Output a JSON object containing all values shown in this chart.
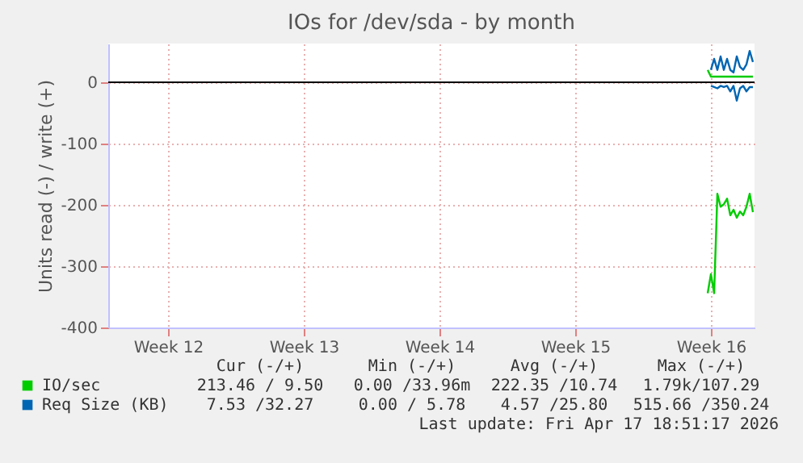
{
  "chart_data": {
    "type": "line",
    "title": "IOs for /dev/sda - by month",
    "ylabel": "Units read (-) / write (+)",
    "categories": [
      null,
      null,
      null,
      null,
      null,
      null,
      null,
      null,
      null,
      null,
      null,
      null,
      null,
      null,
      null,
      null,
      null,
      null,
      "Week 12",
      null,
      null,
      null,
      null,
      null,
      null,
      null,
      null,
      null,
      null,
      null,
      null,
      null,
      null,
      null,
      null,
      null,
      null,
      null,
      null,
      null,
      null,
      null,
      null,
      null,
      null,
      null,
      null,
      null,
      null,
      null,
      null,
      null,
      null,
      null,
      null,
      null,
      null,
      null,
      null,
      null,
      "Week 13",
      null,
      null,
      null,
      null,
      null,
      null,
      null,
      null,
      null,
      null,
      null,
      null,
      null,
      null,
      null,
      null,
      null,
      null,
      null,
      null,
      null,
      null,
      null,
      null,
      null,
      null,
      null,
      null,
      null,
      null,
      null,
      null,
      null,
      null,
      null,
      null,
      null,
      null,
      null,
      null,
      null,
      "Week 14",
      null,
      null,
      null,
      null,
      null,
      null,
      null,
      null,
      null,
      null,
      null,
      null,
      null,
      null,
      null,
      null,
      null,
      null,
      null,
      null,
      null,
      null,
      null,
      null,
      null,
      null,
      null,
      null,
      null,
      null,
      null,
      null,
      null,
      null,
      null,
      null,
      null,
      null,
      null,
      null,
      null,
      "Week 15",
      null,
      null,
      null,
      null,
      null,
      null,
      null,
      null,
      null,
      null,
      null,
      null,
      null,
      null,
      null,
      null,
      null,
      null,
      null,
      null,
      null,
      null,
      null,
      null,
      null,
      null,
      null,
      null,
      null,
      null,
      null,
      null,
      null,
      null,
      null,
      null,
      null,
      null,
      null,
      null,
      null,
      "Week 16",
      null,
      null,
      null,
      null,
      null,
      null,
      null,
      null,
      null,
      null,
      null,
      null,
      null
    ],
    "ylim": [
      -400,
      63
    ],
    "yticks": [
      -400,
      -300,
      -200,
      -100,
      0
    ],
    "grid": true,
    "legend": "bottom",
    "line_style": "solid",
    "ref_lines": [
      {
        "axis": "y",
        "value": 0,
        "color": "#000000"
      }
    ],
    "series": [
      {
        "name": "IO/sec",
        "color": "#00cc00",
        "values": [
          null,
          null,
          null,
          null,
          null,
          null,
          null,
          null,
          null,
          null,
          null,
          null,
          null,
          null,
          null,
          null,
          null,
          null,
          null,
          null,
          null,
          null,
          null,
          null,
          null,
          null,
          null,
          null,
          null,
          null,
          null,
          null,
          null,
          null,
          null,
          null,
          null,
          null,
          null,
          null,
          null,
          null,
          null,
          null,
          null,
          null,
          null,
          null,
          null,
          null,
          null,
          null,
          null,
          null,
          null,
          null,
          null,
          null,
          null,
          null,
          null,
          null,
          null,
          null,
          null,
          null,
          null,
          null,
          null,
          null,
          null,
          null,
          null,
          null,
          null,
          null,
          null,
          null,
          null,
          null,
          null,
          null,
          null,
          null,
          null,
          null,
          null,
          null,
          null,
          null,
          null,
          null,
          null,
          null,
          null,
          null,
          null,
          null,
          null,
          null,
          null,
          null,
          null,
          null,
          null,
          null,
          null,
          null,
          null,
          null,
          null,
          null,
          null,
          null,
          null,
          null,
          null,
          null,
          null,
          null,
          null,
          null,
          null,
          null,
          null,
          null,
          null,
          null,
          null,
          null,
          null,
          null,
          null,
          null,
          null,
          null,
          null,
          null,
          null,
          null,
          null,
          null,
          null,
          null,
          null,
          null,
          null,
          null,
          null,
          null,
          null,
          null,
          null,
          null,
          null,
          null,
          null,
          null,
          null,
          null,
          null,
          null,
          null,
          null,
          null,
          null,
          null,
          null,
          null,
          null,
          null,
          null,
          null,
          null,
          null,
          null,
          null,
          null,
          null,
          null,
          null,
          null,
          null,
          null,
          null,
          -344,
          -313,
          -344,
          -182,
          -203,
          -199,
          -190,
          -217,
          -208,
          -221,
          -211,
          -217,
          -203,
          -182,
          -212
        ]
      },
      {
        "name": "Req Size (KB)",
        "color": "#0066b3",
        "values": [
          null,
          null,
          null,
          null,
          null,
          null,
          null,
          null,
          null,
          null,
          null,
          null,
          null,
          null,
          null,
          null,
          null,
          null,
          null,
          null,
          null,
          null,
          null,
          null,
          null,
          null,
          null,
          null,
          null,
          null,
          null,
          null,
          null,
          null,
          null,
          null,
          null,
          null,
          null,
          null,
          null,
          null,
          null,
          null,
          null,
          null,
          null,
          null,
          null,
          null,
          null,
          null,
          null,
          null,
          null,
          null,
          null,
          null,
          null,
          null,
          null,
          null,
          null,
          null,
          null,
          null,
          null,
          null,
          null,
          null,
          null,
          null,
          null,
          null,
          null,
          null,
          null,
          null,
          null,
          null,
          null,
          null,
          null,
          null,
          null,
          null,
          null,
          null,
          null,
          null,
          null,
          null,
          null,
          null,
          null,
          null,
          null,
          null,
          null,
          null,
          null,
          null,
          null,
          null,
          null,
          null,
          null,
          null,
          null,
          null,
          null,
          null,
          null,
          null,
          null,
          null,
          null,
          null,
          null,
          null,
          null,
          null,
          null,
          null,
          null,
          null,
          null,
          null,
          null,
          null,
          null,
          null,
          null,
          null,
          null,
          null,
          null,
          null,
          null,
          null,
          null,
          null,
          null,
          null,
          null,
          null,
          null,
          null,
          null,
          null,
          null,
          null,
          null,
          null,
          null,
          null,
          null,
          null,
          null,
          null,
          null,
          null,
          null,
          null,
          null,
          null,
          null,
          null,
          null,
          null,
          null,
          null,
          null,
          null,
          null,
          null,
          null,
          null,
          null,
          null,
          null,
          null,
          null,
          null,
          null,
          null,
          -6,
          -8,
          -10,
          -6,
          -8,
          -6,
          -15,
          -6,
          -30,
          -10,
          -6,
          -15,
          -8,
          -8
        ]
      },
      {
        "color": "#00cc00",
        "values": [
          null,
          null,
          null,
          null,
          null,
          null,
          null,
          null,
          null,
          null,
          null,
          null,
          null,
          null,
          null,
          null,
          null,
          null,
          null,
          null,
          null,
          null,
          null,
          null,
          null,
          null,
          null,
          null,
          null,
          null,
          null,
          null,
          null,
          null,
          null,
          null,
          null,
          null,
          null,
          null,
          null,
          null,
          null,
          null,
          null,
          null,
          null,
          null,
          null,
          null,
          null,
          null,
          null,
          null,
          null,
          null,
          null,
          null,
          null,
          null,
          null,
          null,
          null,
          null,
          null,
          null,
          null,
          null,
          null,
          null,
          null,
          null,
          null,
          null,
          null,
          null,
          null,
          null,
          null,
          null,
          null,
          null,
          null,
          null,
          null,
          null,
          null,
          null,
          null,
          null,
          null,
          null,
          null,
          null,
          null,
          null,
          null,
          null,
          null,
          null,
          null,
          null,
          null,
          null,
          null,
          null,
          null,
          null,
          null,
          null,
          null,
          null,
          null,
          null,
          null,
          null,
          null,
          null,
          null,
          null,
          null,
          null,
          null,
          null,
          null,
          null,
          null,
          null,
          null,
          null,
          null,
          null,
          null,
          null,
          null,
          null,
          null,
          null,
          null,
          null,
          null,
          null,
          null,
          null,
          null,
          null,
          null,
          null,
          null,
          null,
          null,
          null,
          null,
          null,
          null,
          null,
          null,
          null,
          null,
          null,
          null,
          null,
          null,
          null,
          null,
          null,
          null,
          null,
          null,
          null,
          null,
          null,
          null,
          null,
          null,
          null,
          null,
          null,
          null,
          null,
          null,
          null,
          null,
          null,
          null,
          20,
          9,
          9,
          9,
          9,
          9,
          9,
          9,
          9,
          9,
          9,
          9,
          9,
          9,
          9
        ]
      },
      {
        "color": "#0066b3",
        "values": [
          null,
          null,
          null,
          null,
          null,
          null,
          null,
          null,
          null,
          null,
          null,
          null,
          null,
          null,
          null,
          null,
          null,
          null,
          null,
          null,
          null,
          null,
          null,
          null,
          null,
          null,
          null,
          null,
          null,
          null,
          null,
          null,
          null,
          null,
          null,
          null,
          null,
          null,
          null,
          null,
          null,
          null,
          null,
          null,
          null,
          null,
          null,
          null,
          null,
          null,
          null,
          null,
          null,
          null,
          null,
          null,
          null,
          null,
          null,
          null,
          null,
          null,
          null,
          null,
          null,
          null,
          null,
          null,
          null,
          null,
          null,
          null,
          null,
          null,
          null,
          null,
          null,
          null,
          null,
          null,
          null,
          null,
          null,
          null,
          null,
          null,
          null,
          null,
          null,
          null,
          null,
          null,
          null,
          null,
          null,
          null,
          null,
          null,
          null,
          null,
          null,
          null,
          null,
          null,
          null,
          null,
          null,
          null,
          null,
          null,
          null,
          null,
          null,
          null,
          null,
          null,
          null,
          null,
          null,
          null,
          null,
          null,
          null,
          null,
          null,
          null,
          null,
          null,
          null,
          null,
          null,
          null,
          null,
          null,
          null,
          null,
          null,
          null,
          null,
          null,
          null,
          null,
          null,
          null,
          null,
          null,
          null,
          null,
          null,
          null,
          null,
          null,
          null,
          null,
          null,
          null,
          null,
          null,
          null,
          null,
          null,
          null,
          null,
          null,
          null,
          null,
          null,
          null,
          null,
          null,
          null,
          null,
          null,
          null,
          null,
          null,
          null,
          null,
          null,
          null,
          null,
          null,
          null,
          null,
          null,
          null,
          20,
          38,
          20,
          42,
          20,
          38,
          20,
          16,
          42,
          25,
          20,
          29,
          51,
          33
        ]
      }
    ],
    "annotations": [
      "Cur (-/+)",
      "Min (-/+)",
      "Avg (-/+)",
      "Max (-/+)",
      "213.46 / 9.50",
      "0.00 /33.96m",
      "222.35 /10.74",
      "1.79k/107.29",
      "7.53 /32.27",
      "0.00 / 5.78",
      "4.57 /25.80",
      "515.66 /350.24",
      "Last update: Fri Apr 17 18:51:17 2026"
    ]
  }
}
